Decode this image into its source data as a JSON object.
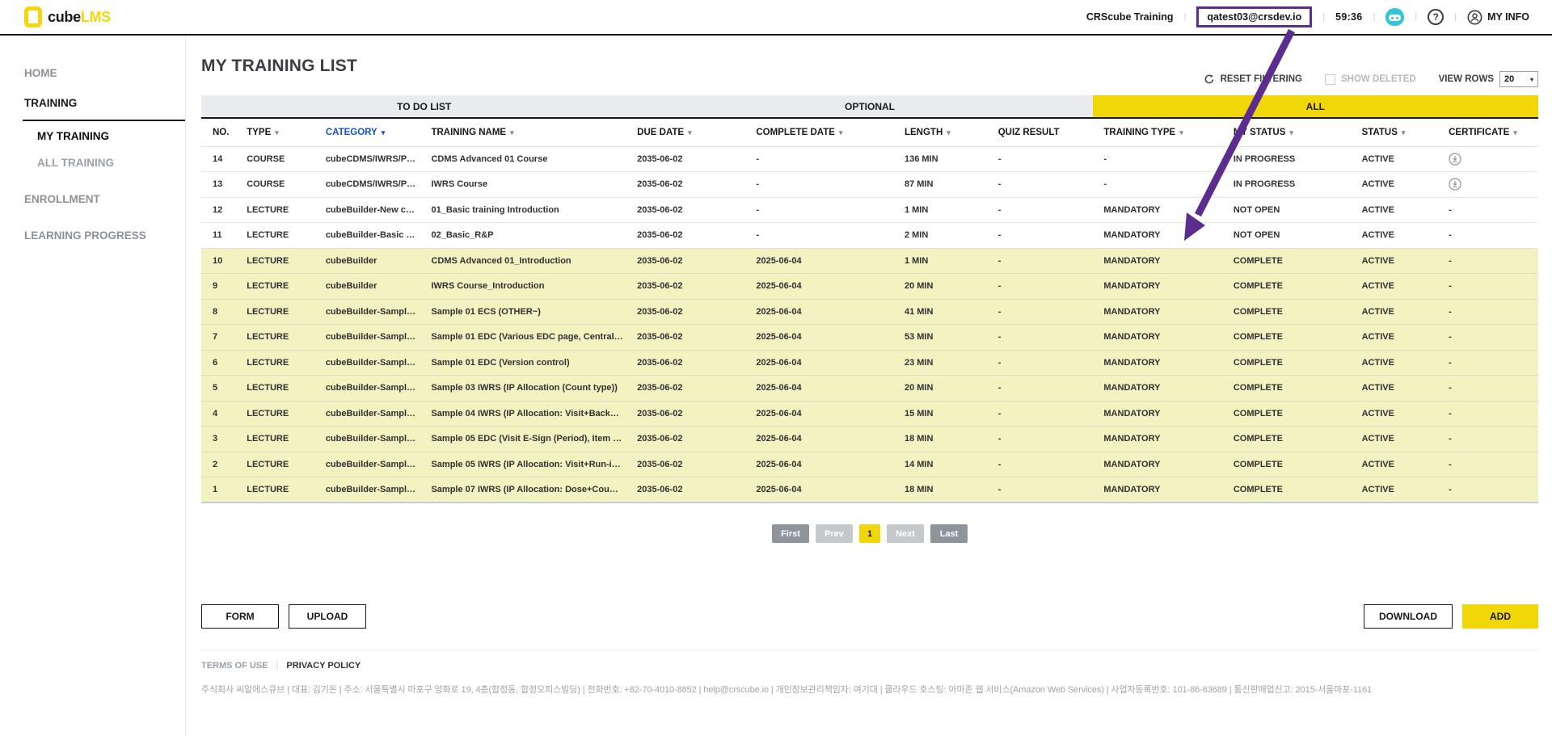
{
  "header": {
    "logo_black": "cube",
    "logo_yellow": "LMS",
    "org_label": "CRScube Training",
    "user_email": "qatest03@crsdev.io",
    "session_timer": "59:36",
    "my_info_label": "MY INFO"
  },
  "sidebar": {
    "items": [
      {
        "id": "home",
        "label": "HOME",
        "style": "top"
      },
      {
        "id": "training",
        "label": "TRAINING",
        "style": "section-active underline"
      },
      {
        "id": "my-training",
        "label": "MY TRAINING",
        "style": "sub active"
      },
      {
        "id": "all-training",
        "label": "ALL TRAINING",
        "style": "sub"
      },
      {
        "id": "enrollment",
        "label": "ENROLLMENT",
        "style": "top gap"
      },
      {
        "id": "learning-progress",
        "label": "LEARNING PROGRESS",
        "style": "top gap"
      }
    ]
  },
  "page": {
    "title": "MY TRAINING LIST",
    "controls": {
      "reset_filtering": "RESET FILTERING",
      "show_deleted": "SHOW DELETED",
      "view_rows_label": "VIEW ROWS",
      "view_rows_value": "20"
    },
    "tabs": [
      {
        "label": "TO DO LIST",
        "active": false
      },
      {
        "label": "OPTIONAL",
        "active": false
      },
      {
        "label": "ALL",
        "active": true
      }
    ]
  },
  "table": {
    "columns": [
      {
        "label": "NO.",
        "sortable": false
      },
      {
        "label": "TYPE",
        "sortable": true
      },
      {
        "label": "CATEGORY",
        "sortable": true,
        "highlighted": true
      },
      {
        "label": "TRAINING NAME",
        "sortable": true
      },
      {
        "label": "DUE DATE",
        "sortable": true
      },
      {
        "label": "COMPLETE DATE",
        "sortable": true
      },
      {
        "label": "LENGTH",
        "sortable": true
      },
      {
        "label": "QUIZ RESULT",
        "sortable": false
      },
      {
        "label": "TRAINING TYPE",
        "sortable": true
      },
      {
        "label": "MY STATUS",
        "sortable": true
      },
      {
        "label": "STATUS",
        "sortable": true
      },
      {
        "label": "CERTIFICATE",
        "sortable": true
      }
    ],
    "rows": [
      {
        "no": "14",
        "type": "COURSE",
        "category": "cubeCDMS/IWRS/P…",
        "name": "CDMS Advanced 01 Course",
        "due_date": "2035-06-02",
        "complete_date": "-",
        "length": "136 MIN",
        "quiz_result": "-",
        "training_type": "-",
        "my_status": "IN PROGRESS",
        "status": "ACTIVE",
        "certificate": "download",
        "highlighted": false
      },
      {
        "no": "13",
        "type": "COURSE",
        "category": "cubeCDMS/IWRS/P…",
        "name": "IWRS Course",
        "due_date": "2035-06-02",
        "complete_date": "-",
        "length": "87 MIN",
        "quiz_result": "-",
        "training_type": "-",
        "my_status": "IN PROGRESS",
        "status": "ACTIVE",
        "certificate": "download",
        "highlighted": false
      },
      {
        "no": "12",
        "type": "LECTURE",
        "category": "cubeBuilder-New c…",
        "name": "01_Basic training Introduction",
        "due_date": "2035-06-02",
        "complete_date": "-",
        "length": "1 MIN",
        "quiz_result": "-",
        "training_type": "MANDATORY",
        "my_status": "NOT OPEN",
        "status": "ACTIVE",
        "certificate": "-",
        "highlighted": false
      },
      {
        "no": "11",
        "type": "LECTURE",
        "category": "cubeBuilder-Basic …",
        "name": "02_Basic_R&P",
        "due_date": "2035-06-02",
        "complete_date": "-",
        "length": "2 MIN",
        "quiz_result": "-",
        "training_type": "MANDATORY",
        "my_status": "NOT OPEN",
        "status": "ACTIVE",
        "certificate": "-",
        "highlighted": false
      },
      {
        "no": "10",
        "type": "LECTURE",
        "category": "cubeBuilder",
        "name": "CDMS Advanced 01_Introduction",
        "due_date": "2035-06-02",
        "complete_date": "2025-06-04",
        "length": "1 MIN",
        "quiz_result": "-",
        "training_type": "MANDATORY",
        "my_status": "COMPLETE",
        "status": "ACTIVE",
        "certificate": "-",
        "highlighted": true
      },
      {
        "no": "9",
        "type": "LECTURE",
        "category": "cubeBuilder",
        "name": "IWRS Course_Introduction",
        "due_date": "2035-06-02",
        "complete_date": "2025-06-04",
        "length": "20 MIN",
        "quiz_result": "-",
        "training_type": "MANDATORY",
        "my_status": "COMPLETE",
        "status": "ACTIVE",
        "certificate": "-",
        "highlighted": true
      },
      {
        "no": "8",
        "type": "LECTURE",
        "category": "cubeBuilder-Sampl…",
        "name": "Sample 01 ECS (OTHER~)",
        "due_date": "2035-06-02",
        "complete_date": "2025-06-04",
        "length": "41 MIN",
        "quiz_result": "-",
        "training_type": "MANDATORY",
        "my_status": "COMPLETE",
        "status": "ACTIVE",
        "certificate": "-",
        "highlighted": true
      },
      {
        "no": "7",
        "type": "LECTURE",
        "category": "cubeBuilder-Sampl…",
        "name": "Sample 01 EDC (Various EDC page, Central…",
        "due_date": "2035-06-02",
        "complete_date": "2025-06-04",
        "length": "53 MIN",
        "quiz_result": "-",
        "training_type": "MANDATORY",
        "my_status": "COMPLETE",
        "status": "ACTIVE",
        "certificate": "-",
        "highlighted": true
      },
      {
        "no": "6",
        "type": "LECTURE",
        "category": "cubeBuilder-Sampl…",
        "name": "Sample 01 EDC (Version control)",
        "due_date": "2035-06-02",
        "complete_date": "2025-06-04",
        "length": "23 MIN",
        "quiz_result": "-",
        "training_type": "MANDATORY",
        "my_status": "COMPLETE",
        "status": "ACTIVE",
        "certificate": "-",
        "highlighted": true
      },
      {
        "no": "5",
        "type": "LECTURE",
        "category": "cubeBuilder-Sampl…",
        "name": "Sample 03 IWRS (IP Allocation (Count type))",
        "due_date": "2035-06-02",
        "complete_date": "2025-06-04",
        "length": "20 MIN",
        "quiz_result": "-",
        "training_type": "MANDATORY",
        "my_status": "COMPLETE",
        "status": "ACTIVE",
        "certificate": "-",
        "highlighted": true
      },
      {
        "no": "4",
        "type": "LECTURE",
        "category": "cubeBuilder-Sampl…",
        "name": "Sample 04 IWRS (IP Allocation: Visit+Back…",
        "due_date": "2035-06-02",
        "complete_date": "2025-06-04",
        "length": "15 MIN",
        "quiz_result": "-",
        "training_type": "MANDATORY",
        "my_status": "COMPLETE",
        "status": "ACTIVE",
        "certificate": "-",
        "highlighted": true
      },
      {
        "no": "3",
        "type": "LECTURE",
        "category": "cubeBuilder-Sampl…",
        "name": "Sample 05 EDC (Visit E-Sign (Period), Item …",
        "due_date": "2035-06-02",
        "complete_date": "2025-06-04",
        "length": "18 MIN",
        "quiz_result": "-",
        "training_type": "MANDATORY",
        "my_status": "COMPLETE",
        "status": "ACTIVE",
        "certificate": "-",
        "highlighted": true
      },
      {
        "no": "2",
        "type": "LECTURE",
        "category": "cubeBuilder-Sampl…",
        "name": "Sample 05 IWRS (IP Allocation: Visit+Run-i…",
        "due_date": "2035-06-02",
        "complete_date": "2025-06-04",
        "length": "14 MIN",
        "quiz_result": "-",
        "training_type": "MANDATORY",
        "my_status": "COMPLETE",
        "status": "ACTIVE",
        "certificate": "-",
        "highlighted": true
      },
      {
        "no": "1",
        "type": "LECTURE",
        "category": "cubeBuilder-Sampl…",
        "name": "Sample 07 IWRS (IP Allocation: Dose+Cou…",
        "due_date": "2035-06-02",
        "complete_date": "2025-06-04",
        "length": "18 MIN",
        "quiz_result": "-",
        "training_type": "MANDATORY",
        "my_status": "COMPLETE",
        "status": "ACTIVE",
        "certificate": "-",
        "highlighted": true
      }
    ]
  },
  "pagination": {
    "first_label": "First",
    "prev_label": "Prev",
    "current_page": "1",
    "next_label": "Next",
    "last_label": "Last"
  },
  "actions": {
    "form_label": "FORM",
    "upload_label": "UPLOAD",
    "download_label": "DOWNLOAD",
    "add_label": "ADD"
  },
  "footer": {
    "terms_label": "TERMS OF USE",
    "privacy_label": "PRIVACY POLICY",
    "company_info": "주식회사 씨알에스큐브 | 대표: 김기돈 | 주소: 서울특별시 마포구 양화로 19, 4층(합정동, 합정오피스빌딩) | 전화번호: +82-70-4010-8852 | help@crscube.io | 개인정보관리책임자: 여기대 | 클라우드 호스팅: 아마존 웹 서비스(Amazon Web Services) | 사업자등록번호: 101-86-63689 | 통신판매업신고: 2015-서울마포-1161"
  },
  "annotation": {
    "color": "#5b2d8e"
  }
}
